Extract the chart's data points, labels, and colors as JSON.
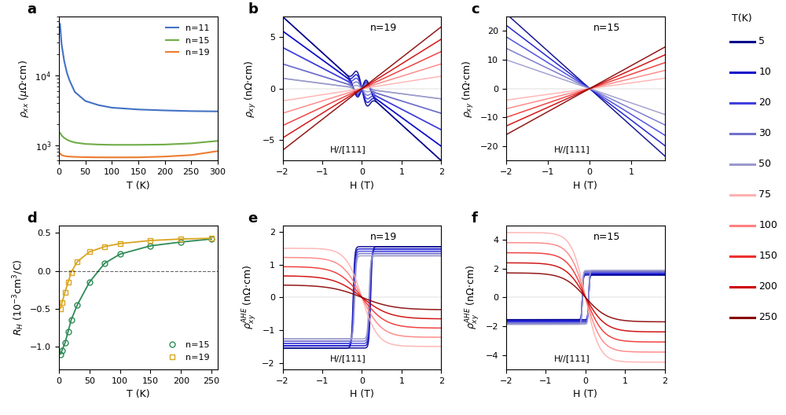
{
  "panel_a": {
    "T": [
      2,
      5,
      10,
      15,
      20,
      30,
      50,
      75,
      100,
      150,
      200,
      250,
      300
    ],
    "n11": [
      55000,
      28000,
      16000,
      11000,
      8500,
      5800,
      4300,
      3750,
      3450,
      3250,
      3150,
      3080,
      3050
    ],
    "n15": [
      1500,
      1380,
      1270,
      1200,
      1150,
      1090,
      1040,
      1020,
      1010,
      1010,
      1020,
      1060,
      1150
    ],
    "n19": [
      760,
      720,
      700,
      690,
      685,
      678,
      672,
      668,
      667,
      668,
      685,
      720,
      820
    ],
    "colors": {
      "n11": "#4472C4",
      "n15": "#70AD47",
      "n19": "#ED7D31"
    },
    "ylim": [
      600,
      70000
    ],
    "xlim": [
      0,
      300
    ]
  },
  "panel_d": {
    "T": [
      2,
      5,
      10,
      15,
      20,
      30,
      50,
      75,
      100,
      150,
      200,
      250
    ],
    "n15": [
      -1.1,
      -1.05,
      -0.95,
      -0.8,
      -0.65,
      -0.45,
      -0.15,
      0.1,
      0.22,
      0.33,
      0.38,
      0.42
    ],
    "n19": [
      -0.5,
      -0.42,
      -0.28,
      -0.15,
      -0.02,
      0.12,
      0.25,
      0.32,
      0.36,
      0.4,
      0.42,
      0.43
    ],
    "colors": {
      "n15": "#2E8B57",
      "n19": "#DAA520"
    },
    "ylim": [
      -1.3,
      0.6
    ],
    "xlim": [
      0,
      260
    ]
  },
  "temperatures": [
    5,
    10,
    20,
    30,
    50,
    75,
    100,
    150,
    200,
    250
  ],
  "blue_colors": [
    "#00008B",
    "#1010CC",
    "#4040DD",
    "#7070CC",
    "#9999CC"
  ],
  "red_colors": [
    "#FFB0B0",
    "#FF8080",
    "#EE3030",
    "#CC0000",
    "#880000"
  ],
  "panel_b_slopes": [
    -3.5,
    -2.8,
    -2.0,
    -1.2,
    -0.5,
    0.6,
    1.2,
    1.8,
    2.4,
    3.0
  ],
  "panel_c_slopes": [
    -13.0,
    -11.0,
    -9.0,
    -7.0,
    -5.0,
    2.0,
    3.5,
    5.0,
    6.5,
    8.0
  ],
  "panel_b_ylim": [
    -7,
    7
  ],
  "panel_c_ylim": [
    -25,
    25
  ],
  "panel_e_ylim": [
    -2.2,
    2.2
  ],
  "panel_f_ylim": [
    -5,
    5
  ],
  "legend_temps": [
    5,
    10,
    20,
    30,
    50,
    75,
    100,
    150,
    200,
    250
  ]
}
